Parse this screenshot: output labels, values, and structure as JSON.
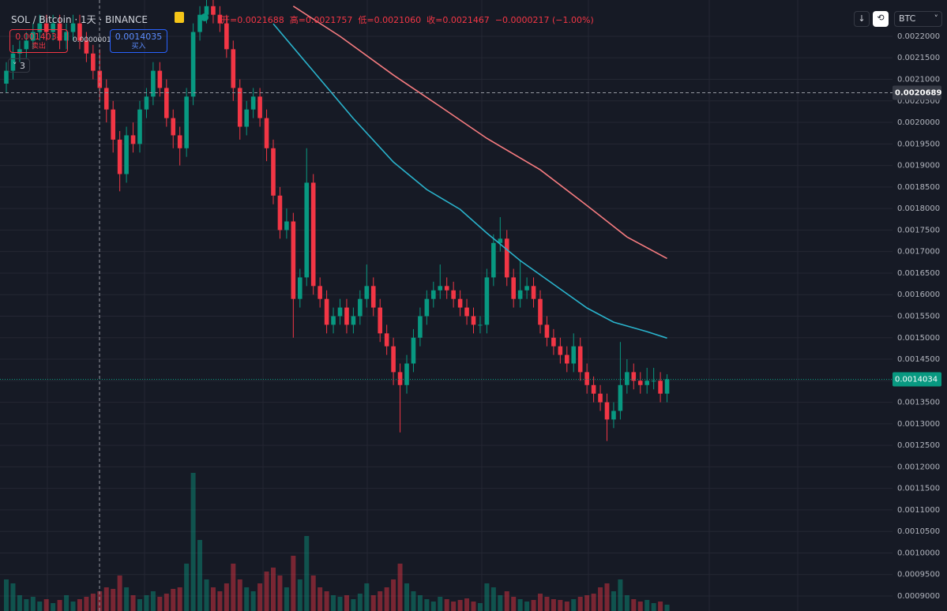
{
  "header": {
    "symbol": "SOL / Bitcoin · 1天 · BINANCE",
    "ohlc": [
      "开=0.0021688",
      "高=0.0021757",
      "低=0.0021060",
      "收=0.0021467"
    ],
    "change": "−0.0000217 (−1.00%)"
  },
  "trade": {
    "sell_price": "0.0014034",
    "sell_label": "卖出",
    "spread": "0.0000001",
    "buy_price": "0.0014035",
    "buy_label": "买入"
  },
  "indicators_count": "3",
  "currency": "BTC",
  "chart_data": {
    "type": "candlestick",
    "grid": true,
    "ylim": [
      0.0008652,
      0.0022843
    ],
    "yticks": [
      {
        "value": 0.0022,
        "label": "0.0022000"
      },
      {
        "value": 0.00215,
        "label": "0.0021500"
      },
      {
        "value": 0.0021,
        "label": "0.0021000"
      },
      {
        "value": 0.00205,
        "label": "0.0020500"
      },
      {
        "value": 0.002,
        "label": "0.0020000"
      },
      {
        "value": 0.00195,
        "label": "0.0019500"
      },
      {
        "value": 0.0019,
        "label": "0.0019000"
      },
      {
        "value": 0.00185,
        "label": "0.0018500"
      },
      {
        "value": 0.0018,
        "label": "0.0018000"
      },
      {
        "value": 0.00175,
        "label": "0.0017500"
      },
      {
        "value": 0.0017,
        "label": "0.0017000"
      },
      {
        "value": 0.00165,
        "label": "0.0016500"
      },
      {
        "value": 0.0016,
        "label": "0.0016000"
      },
      {
        "value": 0.00155,
        "label": "0.0015500"
      },
      {
        "value": 0.0015,
        "label": "0.0015000"
      },
      {
        "value": 0.00145,
        "label": "0.0014500"
      },
      {
        "value": 0.0014,
        "label": "0.0014000"
      },
      {
        "value": 0.00135,
        "label": "0.0013500"
      },
      {
        "value": 0.0013,
        "label": "0.0013000"
      },
      {
        "value": 0.00125,
        "label": "0.0012500"
      },
      {
        "value": 0.0012,
        "label": "0.0012000"
      },
      {
        "value": 0.00115,
        "label": "0.0011500"
      },
      {
        "value": 0.0011,
        "label": "0.0011000"
      },
      {
        "value": 0.00105,
        "label": "0.0010500"
      },
      {
        "value": 0.001,
        "label": "0.0010000"
      },
      {
        "value": 0.00095,
        "label": "0.0009500"
      },
      {
        "value": 0.0009,
        "label": "0.0009000"
      }
    ],
    "crosshair_price": 0.0020689,
    "last_price": 0.0014034,
    "colors": {
      "up": "#089981",
      "down": "#f23645"
    },
    "candles": [
      [
        0.00209,
        0.00214,
        0.00207,
        0.00212
      ],
      [
        0.00212,
        0.00218,
        0.0021,
        0.00216
      ],
      [
        0.00216,
        0.00219,
        0.00214,
        0.00217
      ],
      [
        0.00217,
        0.00221,
        0.00215,
        0.00219
      ],
      [
        0.00219,
        0.00223,
        0.00217,
        0.00221
      ],
      [
        0.00221,
        0.00225,
        0.00219,
        0.00223
      ],
      [
        0.00223,
        0.00225,
        0.00219,
        0.00221
      ],
      [
        0.00221,
        0.00225,
        0.00219,
        0.00223
      ],
      [
        0.00223,
        0.00225,
        0.00217,
        0.00219
      ],
      [
        0.00219,
        0.00223,
        0.00217,
        0.00221
      ],
      [
        0.00221,
        0.00225,
        0.00219,
        0.00223
      ],
      [
        0.00223,
        0.00225,
        0.00217,
        0.00219
      ],
      [
        0.00219,
        0.00221,
        0.00214,
        0.00216
      ],
      [
        0.00216,
        0.00218,
        0.0021,
        0.00212
      ],
      [
        0.00212,
        0.00217,
        0.00205,
        0.00208
      ],
      [
        0.00208,
        0.0021,
        0.002,
        0.00203
      ],
      [
        0.00203,
        0.00205,
        0.00193,
        0.00196
      ],
      [
        0.00196,
        0.00198,
        0.00184,
        0.00188
      ],
      [
        0.00188,
        0.00199,
        0.00186,
        0.00197
      ],
      [
        0.00197,
        0.002,
        0.00193,
        0.00195
      ],
      [
        0.00195,
        0.00205,
        0.00193,
        0.00203
      ],
      [
        0.00203,
        0.00208,
        0.00201,
        0.00206
      ],
      [
        0.00206,
        0.00214,
        0.00204,
        0.00212
      ],
      [
        0.00212,
        0.00214,
        0.00206,
        0.00208
      ],
      [
        0.00208,
        0.0021,
        0.00199,
        0.00201
      ],
      [
        0.00201,
        0.00203,
        0.00194,
        0.00197
      ],
      [
        0.00197,
        0.00199,
        0.0019,
        0.00194
      ],
      [
        0.00194,
        0.00208,
        0.00192,
        0.00206
      ],
      [
        0.00206,
        0.00223,
        0.00204,
        0.00221
      ],
      [
        0.00221,
        0.00227,
        0.00219,
        0.00225
      ],
      [
        0.00225,
        0.00229,
        0.00223,
        0.00227
      ],
      [
        0.00227,
        0.00229,
        0.00223,
        0.00225
      ],
      [
        0.00225,
        0.00227,
        0.00221,
        0.00223
      ],
      [
        0.00223,
        0.00225,
        0.00215,
        0.00217
      ],
      [
        0.00217,
        0.00219,
        0.00205,
        0.00208
      ],
      [
        0.00208,
        0.0021,
        0.00196,
        0.00199
      ],
      [
        0.00199,
        0.00205,
        0.00197,
        0.00203
      ],
      [
        0.00203,
        0.00208,
        0.00201,
        0.00206
      ],
      [
        0.00206,
        0.00208,
        0.00199,
        0.00201
      ],
      [
        0.00201,
        0.00203,
        0.00191,
        0.00194
      ],
      [
        0.00194,
        0.00196,
        0.00181,
        0.00183
      ],
      [
        0.00183,
        0.00185,
        0.00173,
        0.00175
      ],
      [
        0.00175,
        0.0018,
        0.00173,
        0.00177
      ],
      [
        0.00177,
        0.00179,
        0.0015,
        0.00159
      ],
      [
        0.00159,
        0.00166,
        0.00157,
        0.00164
      ],
      [
        0.00164,
        0.00194,
        0.00162,
        0.00186
      ],
      [
        0.00186,
        0.00188,
        0.0016,
        0.00162
      ],
      [
        0.00162,
        0.00164,
        0.00157,
        0.00159
      ],
      [
        0.00159,
        0.00161,
        0.00151,
        0.00153
      ],
      [
        0.00153,
        0.00157,
        0.00151,
        0.00155
      ],
      [
        0.00155,
        0.00159,
        0.00153,
        0.00157
      ],
      [
        0.00157,
        0.00159,
        0.00151,
        0.00153
      ],
      [
        0.00153,
        0.00157,
        0.00151,
        0.00155
      ],
      [
        0.00155,
        0.00161,
        0.00153,
        0.00159
      ],
      [
        0.00159,
        0.00167,
        0.00157,
        0.00162
      ],
      [
        0.00162,
        0.00164,
        0.00155,
        0.00157
      ],
      [
        0.00157,
        0.00159,
        0.00149,
        0.00151
      ],
      [
        0.00151,
        0.00153,
        0.00146,
        0.00148
      ],
      [
        0.00148,
        0.0015,
        0.00139,
        0.00142
      ],
      [
        0.00142,
        0.00144,
        0.00128,
        0.00139
      ],
      [
        0.00139,
        0.00146,
        0.00137,
        0.00144
      ],
      [
        0.00144,
        0.00152,
        0.00142,
        0.0015
      ],
      [
        0.0015,
        0.00157,
        0.00148,
        0.00155
      ],
      [
        0.00155,
        0.00161,
        0.00153,
        0.00159
      ],
      [
        0.00159,
        0.00163,
        0.00157,
        0.00161
      ],
      [
        0.00161,
        0.00167,
        0.00159,
        0.00162
      ],
      [
        0.00162,
        0.00164,
        0.00159,
        0.00161
      ],
      [
        0.00161,
        0.00163,
        0.00157,
        0.00159
      ],
      [
        0.00159,
        0.00161,
        0.00155,
        0.00157
      ],
      [
        0.00157,
        0.00159,
        0.00153,
        0.00155
      ],
      [
        0.00155,
        0.00157,
        0.00151,
        0.00153
      ],
      [
        0.00153,
        0.00155,
        0.00151,
        0.00153
      ],
      [
        0.00153,
        0.00166,
        0.00151,
        0.00164
      ],
      [
        0.00164,
        0.00174,
        0.00162,
        0.00172
      ],
      [
        0.00172,
        0.00178,
        0.0017,
        0.00173
      ],
      [
        0.00173,
        0.00175,
        0.00162,
        0.00164
      ],
      [
        0.00164,
        0.00166,
        0.00157,
        0.00159
      ],
      [
        0.00159,
        0.00168,
        0.00157,
        0.00161
      ],
      [
        0.00161,
        0.00164,
        0.00159,
        0.00162
      ],
      [
        0.00162,
        0.00164,
        0.00157,
        0.00159
      ],
      [
        0.00159,
        0.00161,
        0.00151,
        0.00153
      ],
      [
        0.00153,
        0.00155,
        0.00148,
        0.0015
      ],
      [
        0.0015,
        0.00152,
        0.00146,
        0.00148
      ],
      [
        0.00148,
        0.0015,
        0.00144,
        0.00146
      ],
      [
        0.00146,
        0.00148,
        0.00142,
        0.00144
      ],
      [
        0.00144,
        0.00151,
        0.00142,
        0.00148
      ],
      [
        0.00148,
        0.0015,
        0.0014,
        0.00142
      ],
      [
        0.00142,
        0.00144,
        0.00137,
        0.00139
      ],
      [
        0.00139,
        0.00141,
        0.00135,
        0.00137
      ],
      [
        0.00137,
        0.00139,
        0.00133,
        0.00135
      ],
      [
        0.00135,
        0.00137,
        0.00126,
        0.00131
      ],
      [
        0.00131,
        0.00135,
        0.00129,
        0.00133
      ],
      [
        0.00133,
        0.00149,
        0.00131,
        0.00139
      ],
      [
        0.00139,
        0.00145,
        0.00137,
        0.00142
      ],
      [
        0.00142,
        0.00144,
        0.00138,
        0.0014
      ],
      [
        0.0014,
        0.00142,
        0.00137,
        0.00139
      ],
      [
        0.00139,
        0.00143,
        0.00137,
        0.0014
      ],
      [
        0.0014,
        0.00143,
        0.00138,
        0.0014
      ],
      [
        0.0014,
        0.00142,
        0.00135,
        0.00137
      ],
      [
        0.00137,
        0.001415,
        0.00135,
        0.0014034
      ]
    ],
    "vlim": [
      0,
      200
    ],
    "volumes": [
      40,
      35,
      20,
      15,
      18,
      12,
      15,
      10,
      14,
      20,
      12,
      15,
      18,
      22,
      25,
      30,
      28,
      45,
      30,
      20,
      15,
      20,
      25,
      18,
      22,
      28,
      30,
      60,
      175,
      90,
      40,
      30,
      25,
      35,
      60,
      40,
      30,
      25,
      35,
      50,
      55,
      45,
      30,
      70,
      40,
      95,
      45,
      30,
      25,
      20,
      18,
      20,
      15,
      22,
      35,
      20,
      25,
      30,
      40,
      60,
      35,
      25,
      20,
      15,
      12,
      18,
      15,
      12,
      14,
      16,
      12,
      10,
      35,
      30,
      20,
      25,
      18,
      15,
      12,
      14,
      22,
      18,
      15,
      14,
      12,
      15,
      18,
      20,
      22,
      30,
      35,
      25,
      40,
      20,
      15,
      12,
      14,
      10,
      12,
      8
    ],
    "series": [
      {
        "color": "#f77c80",
        "x": [
          43,
          50,
          58,
          65,
          72,
          80,
          87,
          93,
          99
        ],
        "values": [
          0.00227,
          0.0022,
          0.00211,
          0.002037,
          0.001963,
          0.00189,
          0.001807,
          0.001734,
          0.001684
        ]
      },
      {
        "color": "#2ab3cc",
        "x": [
          40,
          46,
          52,
          58,
          63,
          68,
          72,
          77,
          82,
          87,
          91,
          96,
          99
        ],
        "values": [
          0.002229,
          0.002119,
          0.002009,
          0.001908,
          0.001844,
          0.001798,
          0.001743,
          0.001679,
          0.001624,
          0.001569,
          0.001536,
          0.001514,
          0.001499
        ]
      }
    ]
  }
}
